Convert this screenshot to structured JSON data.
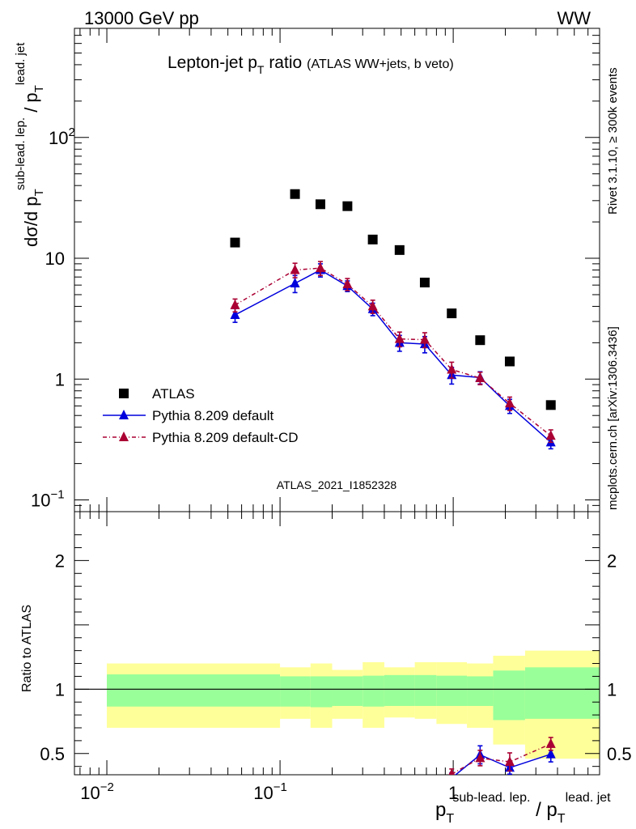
{
  "header": {
    "energy_label": "13000 GeV pp",
    "process_label": "WW"
  },
  "side_labels": {
    "rivet": "Rivet 3.1.10, ≥ 300k events",
    "site": "mcplots.cern.ch [arXiv:1306.3436]"
  },
  "colors": {
    "atlas": "#000000",
    "pythia_default": "#0000dd",
    "pythia_cd": "#aa0033",
    "band_inner": "#99ff99",
    "band_outer": "#ffff99",
    "watermark": "#aaaaaa"
  },
  "chart_data": [
    {
      "type": "scatter",
      "title": "Lepton-jet p_T ratio (ATLAS WW+jets, b veto)",
      "title_main": "Lepton-jet p",
      "title_sub": "T",
      "title_rest": " ratio",
      "title_note": "(ATLAS WW+jets, b veto)",
      "ylabel": "dσ/d p_T^{sub-lead. lep.} / p_T^{lead. jet}",
      "xscale": "log",
      "yscale": "log",
      "xlim": [
        0.0065,
        7.0
      ],
      "ylim": [
        0.08,
        800
      ],
      "watermark": "ATLAS_2021_I1852328",
      "y_ticks": [
        {
          "value": 0.1,
          "label": "10",
          "exp": "−1"
        },
        {
          "value": 1,
          "label": "1",
          "exp": ""
        },
        {
          "value": 10,
          "label": "10",
          "exp": ""
        },
        {
          "value": 100,
          "label": "10",
          "exp": "2"
        }
      ],
      "legend": [
        {
          "label": "ATLAS",
          "series": "atlas"
        },
        {
          "label": "Pythia 8.209 default",
          "series": "pythia_default"
        },
        {
          "label": "Pythia 8.209 default-CD",
          "series": "pythia_cd"
        }
      ],
      "series": [
        {
          "name": "ATLAS",
          "key": "atlas",
          "x": [
            0.055,
            0.122,
            0.171,
            0.245,
            0.343,
            0.49,
            0.685,
            0.98,
            1.43,
            2.12,
            3.66
          ],
          "y": [
            13.5,
            34,
            28,
            27,
            14.3,
            11.7,
            6.3,
            3.5,
            2.1,
            1.4,
            0.61
          ]
        },
        {
          "name": "Pythia 8.209 default",
          "key": "pythia_default",
          "x": [
            0.055,
            0.122,
            0.171,
            0.245,
            0.343,
            0.49,
            0.685,
            0.98,
            1.43,
            2.12,
            3.66
          ],
          "y": [
            3.4,
            6.2,
            8.0,
            5.9,
            3.8,
            2.0,
            1.95,
            1.08,
            1.03,
            0.6,
            0.3
          ],
          "err": [
            0.45,
            1.0,
            1.0,
            0.6,
            0.45,
            0.3,
            0.3,
            0.17,
            0.12,
            0.08,
            0.035
          ]
        },
        {
          "name": "Pythia 8.209 default-CD",
          "key": "pythia_cd",
          "x": [
            0.055,
            0.122,
            0.171,
            0.245,
            0.343,
            0.49,
            0.685,
            0.98,
            1.43,
            2.12,
            3.66
          ],
          "y": [
            4.1,
            8.0,
            8.3,
            6.1,
            4.0,
            2.15,
            2.12,
            1.2,
            1.02,
            0.63,
            0.34
          ],
          "err": [
            0.5,
            1.1,
            1.1,
            0.7,
            0.5,
            0.3,
            0.3,
            0.18,
            0.12,
            0.08,
            0.04
          ]
        }
      ]
    },
    {
      "type": "line",
      "ylabel": "Ratio to ATLAS",
      "xlabel": "p_T^{sub-lead. lep.} / p_T^{lead. jet}",
      "xscale": "log",
      "xlim": [
        0.0065,
        7.0
      ],
      "ylim": [
        0.335,
        2.38
      ],
      "y_ticks": [
        0.5,
        1,
        2
      ],
      "x_ticks": [
        {
          "value": 0.01,
          "label": "10",
          "exp": "−2"
        },
        {
          "value": 0.1,
          "label": "10",
          "exp": "−1"
        },
        {
          "value": 1,
          "label": "1",
          "exp": ""
        }
      ],
      "reference_line": 1,
      "bands": [
        {
          "x_low": 0.01,
          "x_high": 0.1,
          "inner": [
            0.865,
            1.115
          ],
          "outer": [
            0.7,
            1.2
          ]
        },
        {
          "x_low": 0.1,
          "x_high": 0.15,
          "inner": [
            0.865,
            1.1
          ],
          "outer": [
            0.77,
            1.17
          ]
        },
        {
          "x_low": 0.15,
          "x_high": 0.2,
          "inner": [
            0.86,
            1.1
          ],
          "outer": [
            0.7,
            1.2
          ]
        },
        {
          "x_low": 0.2,
          "x_high": 0.3,
          "inner": [
            0.87,
            1.1
          ],
          "outer": [
            0.77,
            1.15
          ]
        },
        {
          "x_low": 0.3,
          "x_high": 0.4,
          "inner": [
            0.865,
            1.105
          ],
          "outer": [
            0.7,
            1.21
          ]
        },
        {
          "x_low": 0.4,
          "x_high": 0.6,
          "inner": [
            0.87,
            1.11
          ],
          "outer": [
            0.78,
            1.17
          ]
        },
        {
          "x_low": 0.6,
          "x_high": 0.8,
          "inner": [
            0.87,
            1.11
          ],
          "outer": [
            0.77,
            1.21
          ]
        },
        {
          "x_low": 0.8,
          "x_high": 1.2,
          "inner": [
            0.87,
            1.105
          ],
          "outer": [
            0.73,
            1.21
          ]
        },
        {
          "x_low": 1.2,
          "x_high": 1.7,
          "inner": [
            0.87,
            1.1
          ],
          "outer": [
            0.7,
            1.2
          ]
        },
        {
          "x_low": 1.7,
          "x_high": 2.6,
          "inner": [
            0.76,
            1.145
          ],
          "outer": [
            0.57,
            1.26
          ]
        },
        {
          "x_low": 2.6,
          "x_high": 7.0,
          "inner": [
            0.77,
            1.17
          ],
          "outer": [
            0.46,
            1.3
          ]
        }
      ],
      "series": [
        {
          "name": "Pythia 8.209 default",
          "key": "pythia_default",
          "x": [
            0.98,
            1.43,
            2.12,
            3.66
          ],
          "y": [
            0.31,
            0.49,
            0.39,
            0.495
          ],
          "err": [
            0.04,
            0.07,
            0.05,
            0.06
          ]
        },
        {
          "name": "Pythia 8.209 default-CD",
          "key": "pythia_cd",
          "x": [
            0.98,
            1.43,
            2.12,
            3.66
          ],
          "y": [
            0.34,
            0.465,
            0.435,
            0.575
          ],
          "err": [
            0.04,
            0.06,
            0.07,
            0.05
          ]
        }
      ]
    }
  ]
}
